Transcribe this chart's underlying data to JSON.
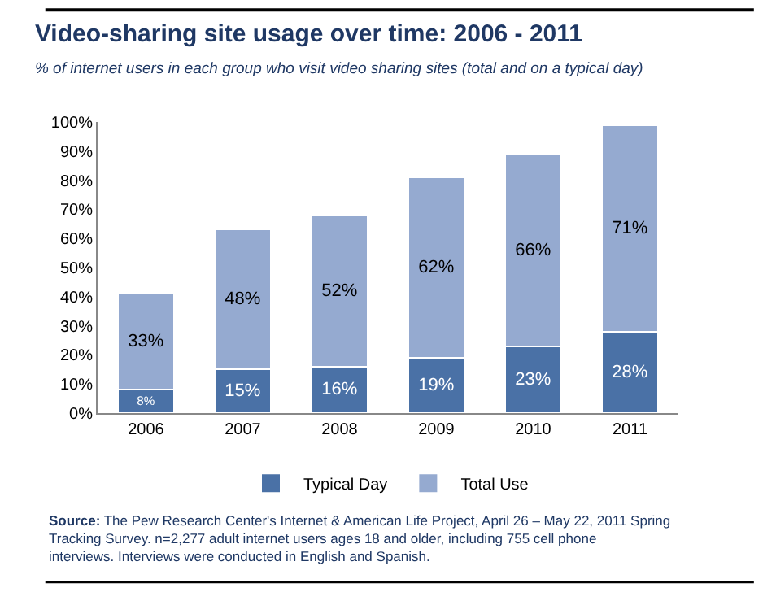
{
  "chart_data": {
    "type": "bar",
    "title": "Video-sharing site usage over time: 2006 - 2011",
    "subtitle": "% of internet users in each group who visit video sharing sites (total and on a typical day)",
    "categories": [
      "2006",
      "2007",
      "2008",
      "2009",
      "2010",
      "2011"
    ],
    "series": [
      {
        "name": "Typical Day",
        "color": "#4a71a6",
        "values": [
          8,
          15,
          16,
          19,
          23,
          28
        ],
        "value_labels": [
          "8%",
          "15%",
          "16%",
          "19%",
          "23%",
          "28%"
        ]
      },
      {
        "name": "Total Use",
        "color": "#95aad0",
        "values": [
          33,
          48,
          52,
          62,
          66,
          71
        ],
        "value_labels": [
          "33%",
          "48%",
          "52%",
          "62%",
          "66%",
          "71%"
        ]
      }
    ],
    "stacked": true,
    "ylim": [
      0,
      100
    ],
    "yticks": [
      {
        "value": 0,
        "label": "0%"
      },
      {
        "value": 10,
        "label": "10%"
      },
      {
        "value": 20,
        "label": "20%"
      },
      {
        "value": 30,
        "label": "30%"
      },
      {
        "value": 40,
        "label": "40%"
      },
      {
        "value": 50,
        "label": "50%"
      },
      {
        "value": 60,
        "label": "60%"
      },
      {
        "value": 70,
        "label": "70%"
      },
      {
        "value": 80,
        "label": "80%"
      },
      {
        "value": 90,
        "label": "90%"
      },
      {
        "value": 100,
        "label": "100%"
      }
    ],
    "grid": false,
    "legend": "bottom",
    "annotations": [
      "Source: The Pew Research Center's Internet & American Life Project, April 26 – May 22, 2011 Spring Tracking Survey. n=2,277 adult internet users ages 18 and older, including 755 cell phone interviews. Interviews were conducted in English and Spanish."
    ]
  }
}
